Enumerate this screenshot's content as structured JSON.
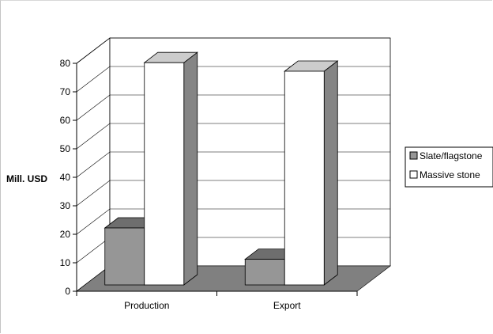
{
  "chart_data": {
    "type": "bar",
    "title": "",
    "xlabel": "",
    "ylabel": "Mill. USD",
    "ylim": [
      0,
      80
    ],
    "y_tick_step": 10,
    "categories": [
      "Production",
      "Export"
    ],
    "series": [
      {
        "name": "Slate/flagstone",
        "values": [
          20,
          9
        ],
        "color": "#969696"
      },
      {
        "name": "Massive stone",
        "values": [
          78,
          75
        ],
        "color": "#ffffff"
      }
    ],
    "legend": "right",
    "grid": true,
    "style": "3d",
    "floor_color": "#808080"
  }
}
